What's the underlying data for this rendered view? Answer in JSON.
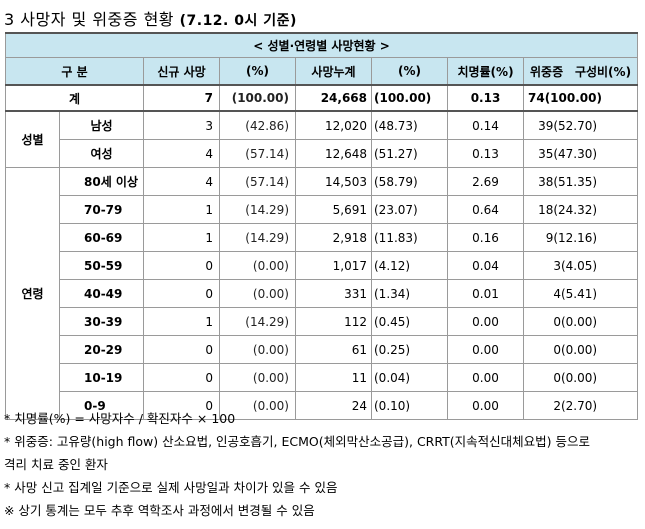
{
  "heading": {
    "prefix": "3  사망자 및 위중증 현황",
    "date": "(7.12. 0시 기준)"
  },
  "table": {
    "caption": "< 성별·연령별 사망현황 >",
    "headers": {
      "category": "구 분",
      "new_deaths": "신규 사망",
      "new_pct": "(%)",
      "cum_deaths": "사망누계",
      "cum_pct": "(%)",
      "cfr": "치명률(%)",
      "severe_a": "위중증",
      "severe_b": "구성비(%)"
    },
    "total": {
      "label": "계",
      "new": "7",
      "new_pct": "(100.00)",
      "cum": "24,668",
      "cum_pct": "(100.00)",
      "cfr": "0.13",
      "severe": "74(100.00)"
    },
    "sex_group": "성별",
    "sex_rows": [
      {
        "label": "남성",
        "new": "3",
        "new_pct": "(42.86)",
        "cum": "12,020",
        "cum_pct": "(48.73)",
        "cfr": "0.14",
        "severe": "39(52.70)"
      },
      {
        "label": "여성",
        "new": "4",
        "new_pct": "(57.14)",
        "cum": "12,648",
        "cum_pct": "(51.27)",
        "cfr": "0.13",
        "severe": "35(47.30)"
      }
    ],
    "age_group": "연령",
    "age_rows": [
      {
        "label": "80세 이상",
        "new": "4",
        "new_pct": "(57.14)",
        "cum": "14,503",
        "cum_pct": "(58.79)",
        "cfr": "2.69",
        "severe": "38(51.35)"
      },
      {
        "label": "70-79",
        "new": "1",
        "new_pct": "(14.29)",
        "cum": "5,691",
        "cum_pct": "(23.07)",
        "cfr": "0.64",
        "severe": "18(24.32)"
      },
      {
        "label": "60-69",
        "new": "1",
        "new_pct": "(14.29)",
        "cum": "2,918",
        "cum_pct": "(11.83)",
        "cfr": "0.16",
        "severe": "9(12.16)"
      },
      {
        "label": "50-59",
        "new": "0",
        "new_pct": "(0.00)",
        "cum": "1,017",
        "cum_pct": "(4.12)",
        "cfr": "0.04",
        "severe": "3(4.05)"
      },
      {
        "label": "40-49",
        "new": "0",
        "new_pct": "(0.00)",
        "cum": "331",
        "cum_pct": "(1.34)",
        "cfr": "0.01",
        "severe": "4(5.41)"
      },
      {
        "label": "30-39",
        "new": "1",
        "new_pct": "(14.29)",
        "cum": "112",
        "cum_pct": "(0.45)",
        "cfr": "0.00",
        "severe": "0(0.00)"
      },
      {
        "label": "20-29",
        "new": "0",
        "new_pct": "(0.00)",
        "cum": "61",
        "cum_pct": "(0.25)",
        "cfr": "0.00",
        "severe": "0(0.00)"
      },
      {
        "label": "10-19",
        "new": "0",
        "new_pct": "(0.00)",
        "cum": "11",
        "cum_pct": "(0.04)",
        "cfr": "0.00",
        "severe": "0(0.00)"
      },
      {
        "label": "0-9",
        "new": "0",
        "new_pct": "(0.00)",
        "cum": "24",
        "cum_pct": "(0.10)",
        "cfr": "0.00",
        "severe": "2(2.70)"
      }
    ]
  },
  "notes": [
    "* 치명률(%) = 사망자수 / 확진자수 × 100",
    "* 위중증: 고유량(high flow) 산소요법, 인공호흡기, ECMO(체외막산소공급), CRRT(지속적신대체요법) 등으로",
    "격리 치료 중인 환자",
    "* 사망 신고 집계일 기준으로 실제 사망일과 차이가 있을 수 있음",
    "※ 상기 통계는 모두 추후 역학조사 과정에서 변경될 수 있음"
  ]
}
